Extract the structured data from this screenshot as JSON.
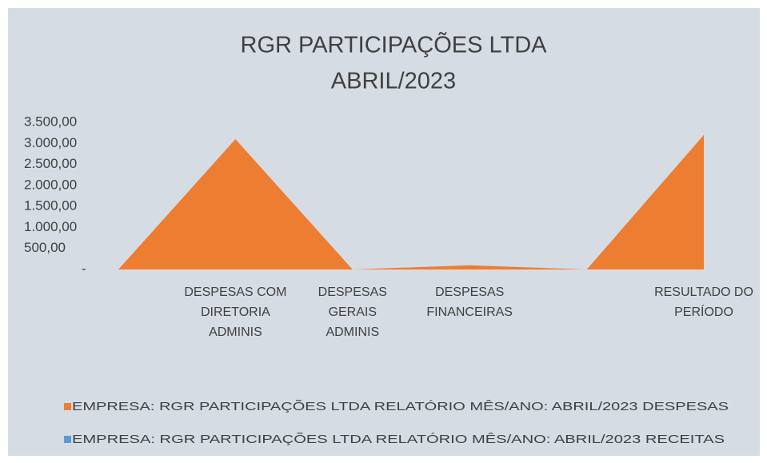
{
  "chart_data": {
    "type": "area",
    "title": [
      "RGR PARTICIPAÇÕES LTDA",
      "ABRIL/2023"
    ],
    "categories": [
      null,
      "DESPESAS COM DIRETORIA ADMINIS",
      "DESPESAS GERAIS ADMINIS",
      "DESPESAS FINANCEIRAS",
      null,
      "RESULTADO DO PERÍODO"
    ],
    "series": [
      {
        "name": "EMPRESA: RGR PARTICIPAÇÕES LTDA RELATÓRIO MÊS/ANO: ABRIL/2023 DESPESAS",
        "color": "#ed7d31",
        "values": [
          0,
          3100,
          0,
          100,
          0,
          3200
        ]
      },
      {
        "name": "EMPRESA: RGR PARTICIPAÇÕES LTDA RELATÓRIO MÊS/ANO: ABRIL/2023 RECEITAS",
        "color": "#5b9bd5",
        "values": [
          0,
          0,
          0,
          0,
          0,
          0
        ]
      }
    ],
    "ylim": [
      0,
      3500
    ],
    "yticks": [
      {
        "value": 0,
        "label": "-"
      },
      {
        "value": 500,
        "label": "500,00"
      },
      {
        "value": 1000,
        "label": "1.000,00"
      },
      {
        "value": 1500,
        "label": "1.500,00"
      },
      {
        "value": 2000,
        "label": "2.000,00"
      },
      {
        "value": 2500,
        "label": "2.500,00"
      },
      {
        "value": 3000,
        "label": "3.000,00"
      },
      {
        "value": 3500,
        "label": "3.500,00"
      }
    ],
    "grid": false,
    "legend": "bottom"
  }
}
